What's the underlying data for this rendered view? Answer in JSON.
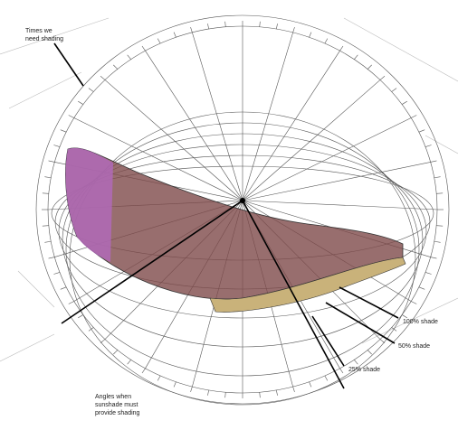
{
  "annotations": {
    "times_shading": [
      "Times we",
      "need shading"
    ],
    "shade_100": "100% shade",
    "shade_50": "50% shade",
    "shade_25": "25% shade",
    "angles": [
      "Angles when",
      "sunshade must",
      "provide shading"
    ]
  }
}
